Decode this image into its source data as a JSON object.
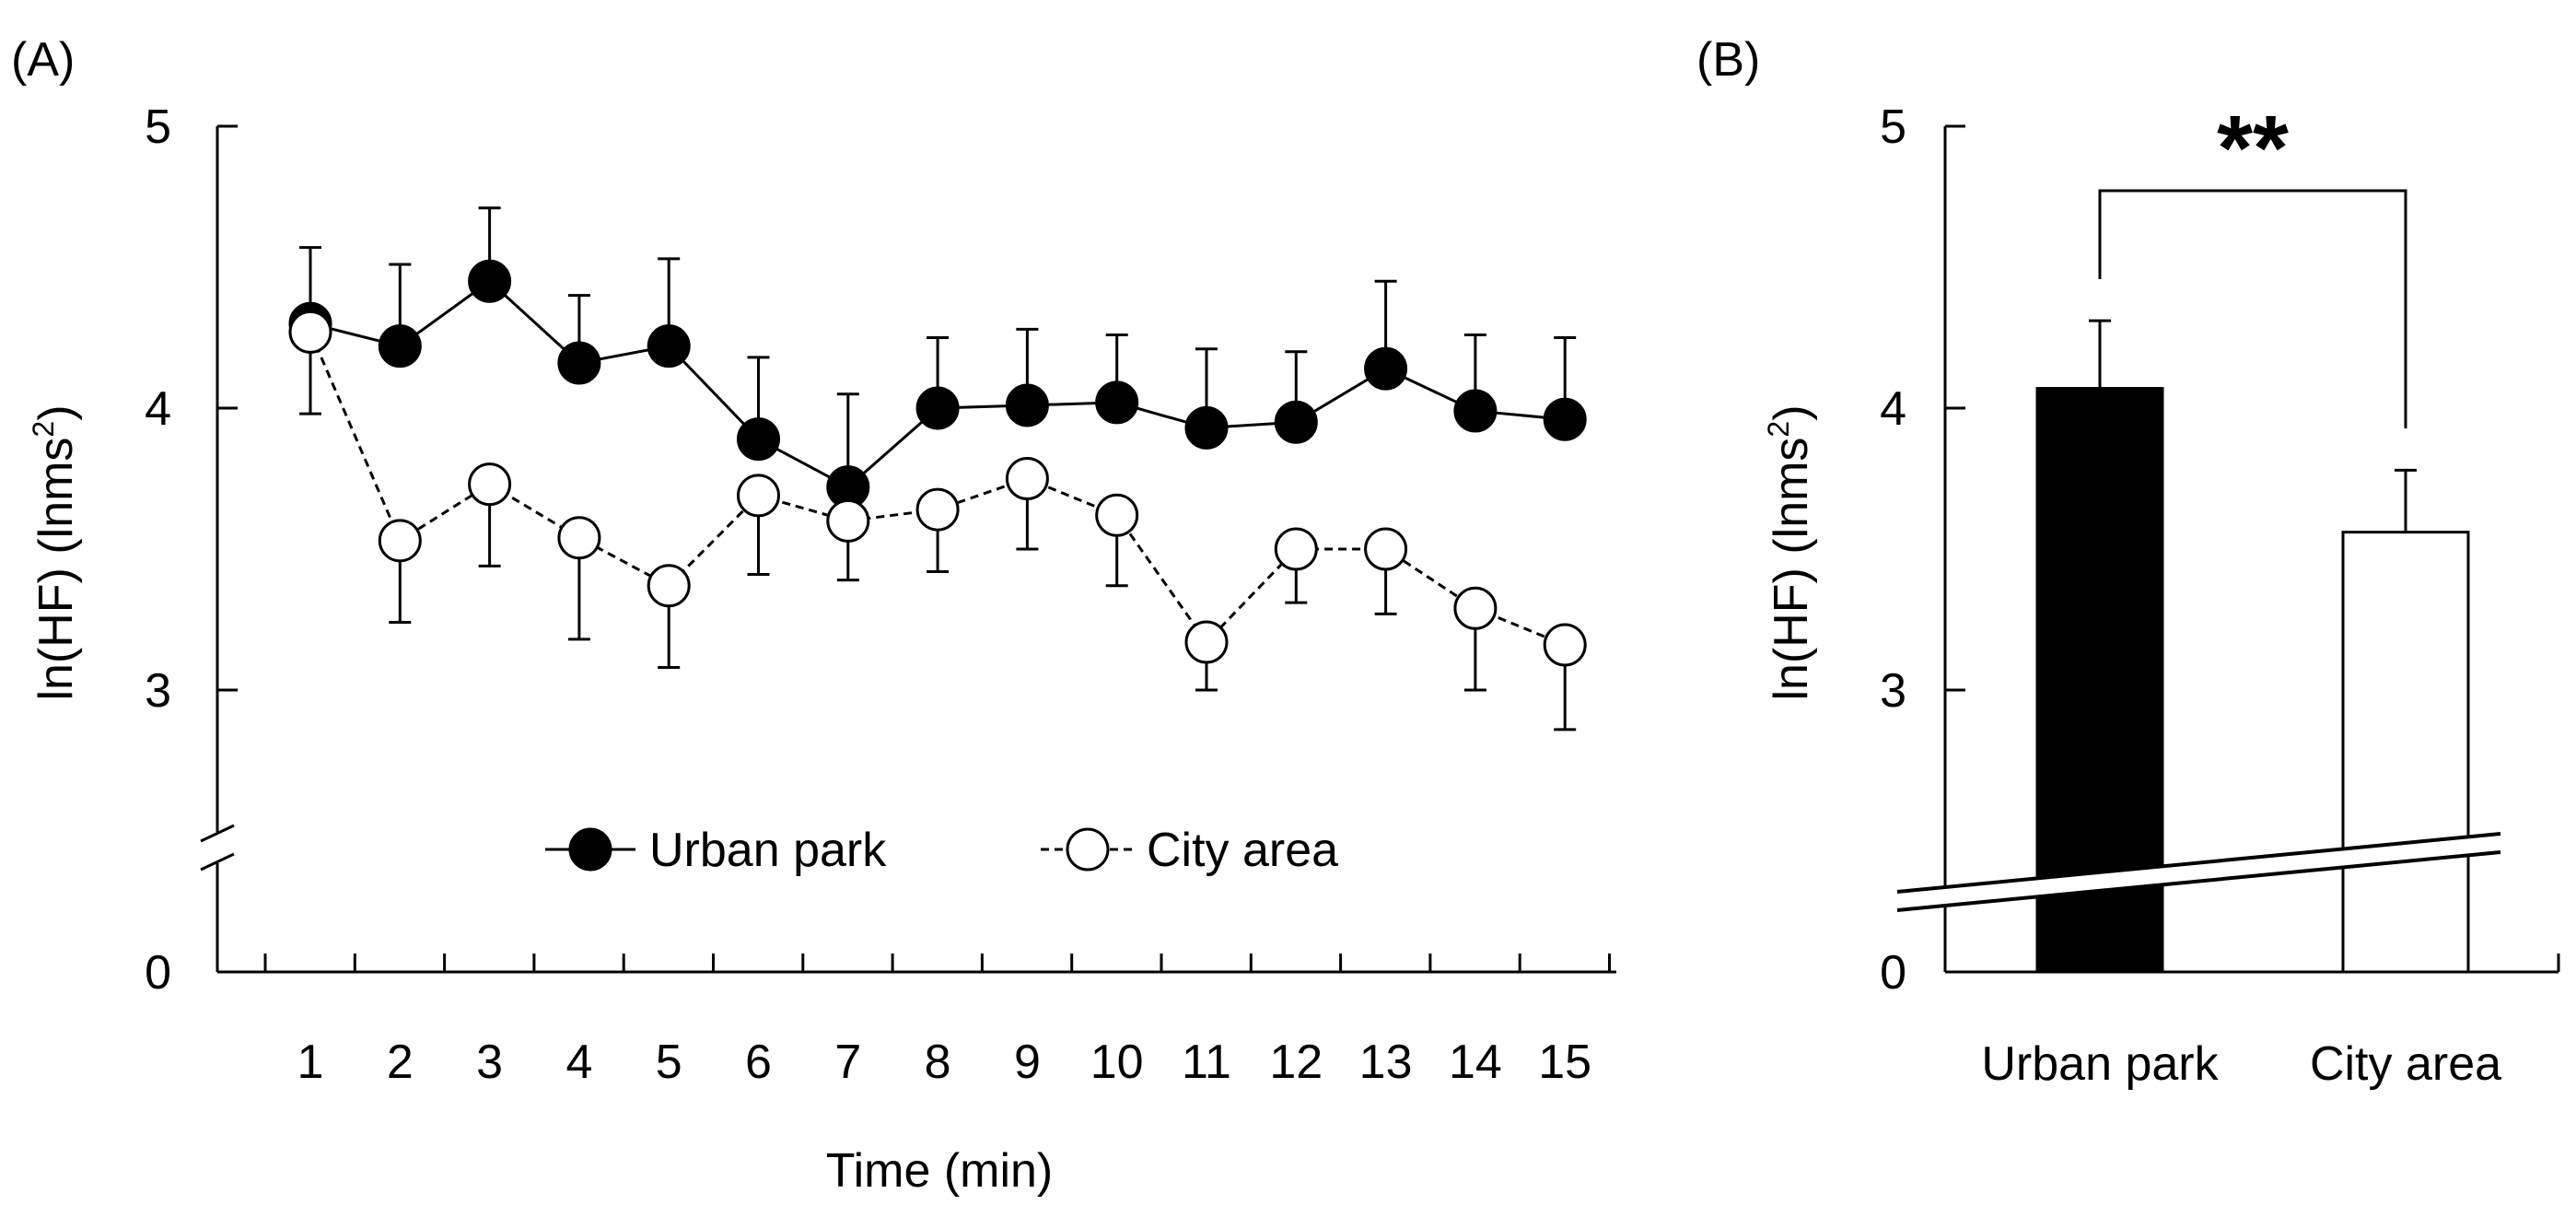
{
  "chart_data": [
    {
      "panel": "(A)",
      "type": "line",
      "xlabel": "Time (min)",
      "ylabel": "ln(HF) (lnms",
      "ylabel_sup": "2",
      "ylabel_close": ")",
      "x": [
        1,
        2,
        3,
        4,
        5,
        6,
        7,
        8,
        9,
        10,
        11,
        12,
        13,
        14,
        15
      ],
      "x_tick_labels": [
        "1",
        "2",
        "3",
        "4",
        "5",
        "6",
        "7",
        "8",
        "9",
        "10",
        "11",
        "12",
        "13",
        "14",
        "15"
      ],
      "y_ticks": [
        5,
        4,
        3,
        0
      ],
      "y_tick_labels": [
        "5",
        "4",
        "3",
        "0"
      ],
      "y_axis_break": true,
      "legend_position": "bottom-center",
      "series": [
        {
          "name": "Urban park",
          "marker": "filled-circle",
          "line": "solid",
          "values": [
            4.3,
            4.22,
            4.45,
            4.16,
            4.22,
            3.89,
            3.72,
            4.0,
            4.01,
            4.02,
            3.93,
            3.95,
            4.14,
            3.99,
            3.96
          ],
          "error_upper": [
            4.57,
            4.51,
            4.71,
            4.4,
            4.53,
            4.18,
            4.05,
            4.25,
            4.28,
            4.26,
            4.21,
            4.2,
            4.45,
            4.26,
            4.25
          ]
        },
        {
          "name": "City area",
          "marker": "open-circle",
          "line": "dashed",
          "values": [
            4.27,
            3.53,
            3.73,
            3.54,
            3.37,
            3.69,
            3.6,
            3.64,
            3.75,
            3.62,
            3.17,
            3.5,
            3.5,
            3.29,
            3.16
          ],
          "error_lower": [
            3.98,
            3.24,
            3.44,
            3.18,
            3.08,
            3.41,
            3.39,
            3.42,
            3.5,
            3.37,
            3.0,
            3.31,
            3.27,
            3.0,
            2.86
          ]
        }
      ]
    },
    {
      "panel": "(B)",
      "type": "bar",
      "ylabel": "ln(HF) (lnms",
      "ylabel_sup": "2",
      "ylabel_close": ")",
      "categories": [
        "Urban park",
        "City area"
      ],
      "values": [
        4.07,
        3.56
      ],
      "error_upper": [
        4.31,
        3.78
      ],
      "colors": [
        "#000000",
        "#ffffff"
      ],
      "y_ticks": [
        5,
        4,
        3,
        0
      ],
      "y_tick_labels": [
        "5",
        "4",
        "3",
        "0"
      ],
      "y_axis_break": true,
      "significance": "**"
    }
  ]
}
